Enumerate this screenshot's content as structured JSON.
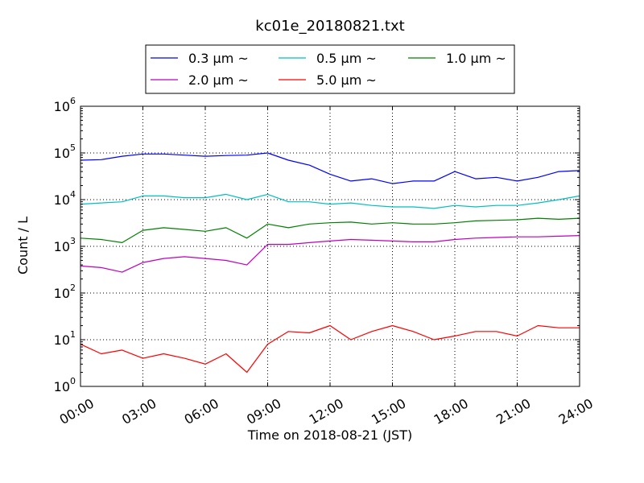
{
  "chart_data": {
    "type": "line",
    "title": "kc01e_20180821.txt",
    "xlabel": "Time on 2018-08-21 (JST)",
    "ylabel": "Count / L",
    "xlim": [
      "00:00",
      "24:00"
    ],
    "ylim": [
      1,
      1000000
    ],
    "yscale": "log",
    "grid": true,
    "legend_position": "top-center",
    "x_ticks": [
      "00:00",
      "03:00",
      "06:00",
      "09:00",
      "12:00",
      "15:00",
      "18:00",
      "21:00",
      "24:00"
    ],
    "y_ticks": [
      {
        "base": "10",
        "exp": "0"
      },
      {
        "base": "10",
        "exp": "1"
      },
      {
        "base": "10",
        "exp": "2"
      },
      {
        "base": "10",
        "exp": "3"
      },
      {
        "base": "10",
        "exp": "4"
      },
      {
        "base": "10",
        "exp": "5"
      },
      {
        "base": "10",
        "exp": "6"
      }
    ],
    "x": [
      "00:00",
      "01:00",
      "02:00",
      "03:00",
      "04:00",
      "05:00",
      "06:00",
      "07:00",
      "08:00",
      "09:00",
      "10:00",
      "11:00",
      "12:00",
      "13:00",
      "14:00",
      "15:00",
      "16:00",
      "17:00",
      "18:00",
      "19:00",
      "20:00",
      "21:00",
      "22:00",
      "23:00",
      "24:00"
    ],
    "series": [
      {
        "name": "0.3 μm ~",
        "color": "#0000ff",
        "values": [
          70000,
          72000,
          85000,
          95000,
          95000,
          90000,
          85000,
          88000,
          90000,
          100000,
          70000,
          55000,
          35000,
          25000,
          28000,
          22000,
          25000,
          25000,
          40000,
          28000,
          30000,
          25000,
          30000,
          40000,
          42000
        ]
      },
      {
        "name": "0.5 μm ~",
        "color": "#00bfbf",
        "values": [
          8000,
          8500,
          9000,
          12000,
          12000,
          11000,
          11000,
          13000,
          10000,
          13000,
          9000,
          9000,
          8000,
          8500,
          7500,
          7000,
          7000,
          6500,
          7500,
          7000,
          7500,
          7500,
          8500,
          10000,
          12000
        ]
      },
      {
        "name": "1.0 μm ~",
        "color": "#008000",
        "values": [
          1500,
          1400,
          1200,
          2200,
          2500,
          2300,
          2100,
          2500,
          1500,
          3000,
          2500,
          3000,
          3200,
          3300,
          3000,
          3200,
          3000,
          3000,
          3200,
          3500,
          3600,
          3700,
          4000,
          3800,
          4000
        ]
      },
      {
        "name": "2.0 μm ~",
        "color": "#bf00bf",
        "values": [
          380,
          350,
          280,
          450,
          550,
          600,
          550,
          500,
          400,
          1100,
          1100,
          1200,
          1300,
          1400,
          1350,
          1300,
          1250,
          1250,
          1400,
          1500,
          1550,
          1600,
          1600,
          1650,
          1700
        ]
      },
      {
        "name": "5.0 μm ~",
        "color": "#ff0000",
        "values": [
          8,
          5,
          6,
          4,
          5,
          4,
          3,
          5,
          2,
          8,
          15,
          14,
          20,
          10,
          15,
          20,
          15,
          10,
          12,
          15,
          15,
          12,
          20,
          18,
          18
        ]
      }
    ]
  }
}
